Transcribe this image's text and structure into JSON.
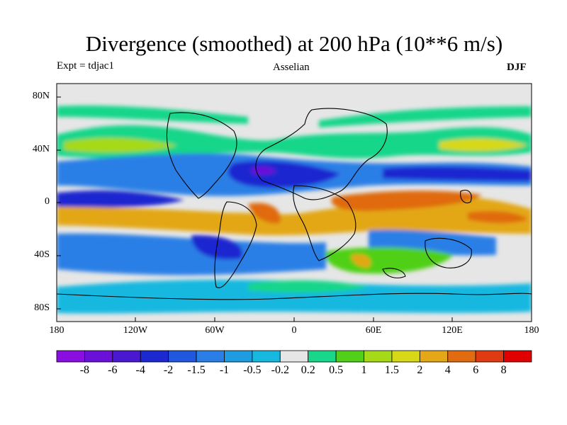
{
  "title": "Divergence (smoothed) at 200 hPa (10**6 m/s)",
  "experiment_label": "Expt = tdjac1",
  "scheme_label": "Asselian",
  "season_label": "DJF",
  "lat_labels": [
    "80N",
    "40N",
    "0",
    "40S",
    "80S"
  ],
  "lon_labels": [
    "180",
    "120W",
    "60W",
    "0",
    "60E",
    "120E",
    "180"
  ],
  "colorbar": {
    "labels": [
      "-8",
      "-6",
      "-4",
      "-2",
      "-1.5",
      "-1",
      "-0.5",
      "-0.2",
      "0.2",
      "0.5",
      "1",
      "1.5",
      "2",
      "4",
      "6",
      "8"
    ],
    "colors": [
      "#8a0ee0",
      "#6a10d8",
      "#4a18d0",
      "#1c28d0",
      "#1f57dd",
      "#2a7fe6",
      "#1f9be0",
      "#16b8e0",
      "#e6e6e6",
      "#18d68a",
      "#50d018",
      "#a6d918",
      "#d8d818",
      "#e3a718",
      "#e06b10",
      "#e03a10",
      "#e00000"
    ]
  }
}
